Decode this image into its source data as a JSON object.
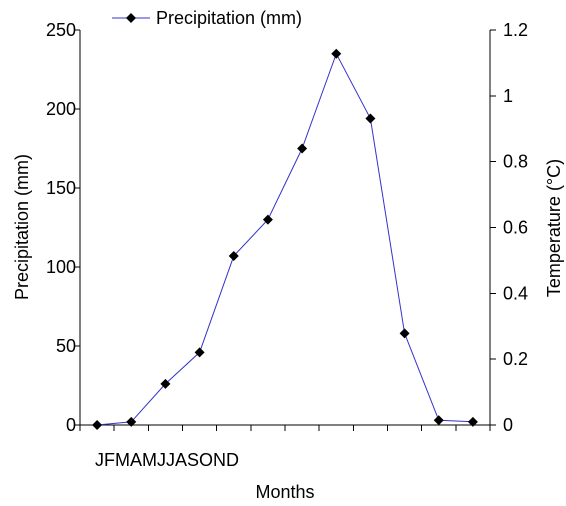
{
  "chart_data": {
    "type": "line",
    "categories": [
      "J",
      "F",
      "M",
      "A",
      "M",
      "J",
      "J",
      "A",
      "S",
      "O",
      "N",
      "D"
    ],
    "x_tick_text": "JFMAMJJASOND",
    "series": [
      {
        "name": "Precipitation (mm)",
        "axis": "left",
        "color": "#3333cc",
        "marker_color": "#000000",
        "marker": "diamond",
        "values": [
          0,
          2,
          26,
          46,
          107,
          130,
          175,
          235,
          194,
          58,
          3,
          2
        ]
      }
    ],
    "xlabel": "Months",
    "ylabel": "Precipitation (mm)",
    "y2label": "Temperature (°C)",
    "ylim": [
      0,
      250
    ],
    "yticks": [
      0,
      50,
      100,
      150,
      200,
      250
    ],
    "y2lim": [
      0,
      1.2
    ],
    "y2ticks": [
      0,
      0.2,
      0.4,
      0.6,
      0.8,
      1,
      1.2
    ],
    "legend_position": "top",
    "grid": false
  }
}
